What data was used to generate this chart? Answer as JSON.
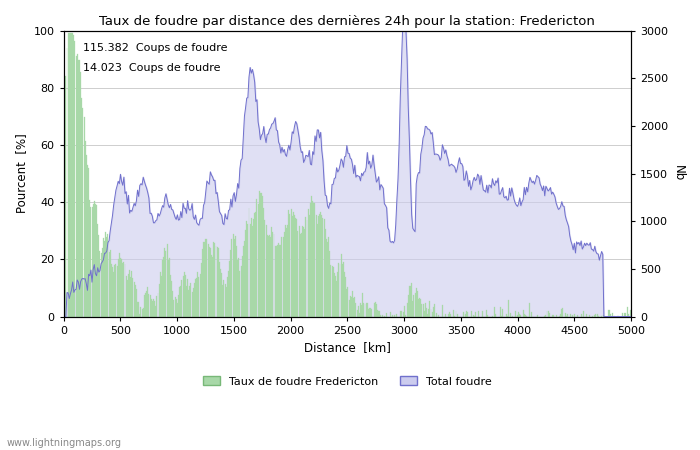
{
  "title": "Taux de foudre par distance des dernières 24h pour la station: Fredericton",
  "xlabel": "Distance  [km]",
  "ylabel_left": "Pourcent  [%]",
  "ylabel_right": "Nb",
  "annotation_line1": "115.382  Coups de foudre",
  "annotation_line2": "14.023  Coups de foudre",
  "legend_label1": "Taux de foudre Fredericton",
  "legend_label2": "Total foudre",
  "watermark": "www.lightningmaps.org",
  "xlim": [
    0,
    5000
  ],
  "ylim_left": [
    0,
    100
  ],
  "ylim_right": [
    0,
    3000
  ],
  "bar_color": "#a8d8a8",
  "bar_edge_color": "#78b878",
  "area_fill_color": "#ccccee",
  "area_line_color": "#7070cc",
  "grid_color": "#bbbbbb",
  "x_ticks": [
    0,
    500,
    1000,
    1500,
    2000,
    2500,
    3000,
    3500,
    4000,
    4500,
    5000
  ],
  "y_ticks_left": [
    0,
    20,
    40,
    60,
    80,
    100
  ],
  "y_ticks_right": [
    0,
    500,
    1000,
    1500,
    2000,
    2500,
    3000
  ],
  "figwidth": 7.0,
  "figheight": 4.5,
  "dpi": 100
}
